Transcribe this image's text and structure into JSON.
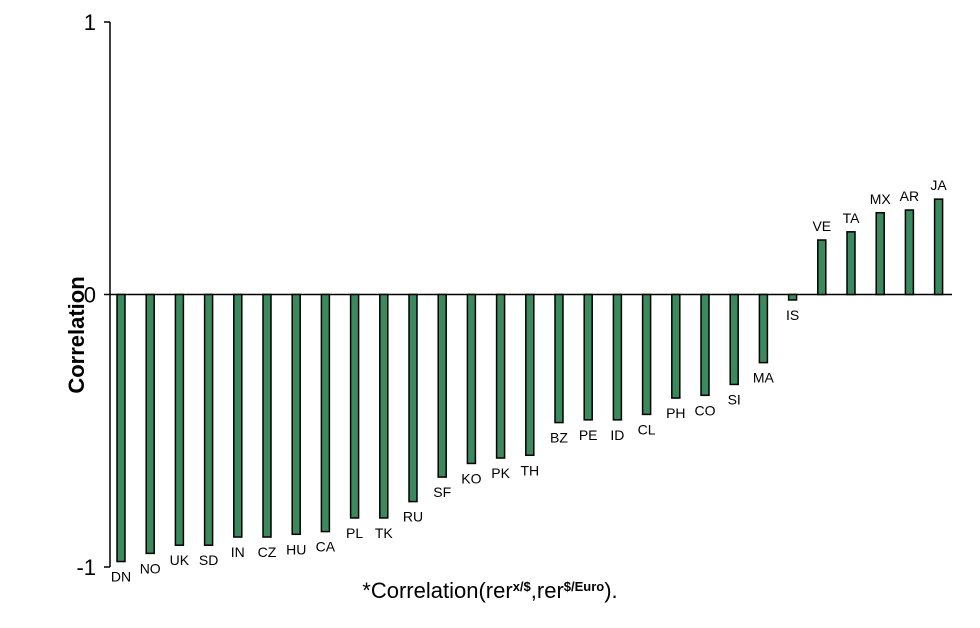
{
  "chart_data": {
    "type": "bar",
    "ylabel": "Correlation",
    "xlabel_parts": [
      "*Correlation(rer",
      "x/$",
      ",rer",
      "$/Euro",
      ")."
    ],
    "categories": [
      "DN",
      "NO",
      "UK",
      "SD",
      "IN",
      "CZ",
      "HU",
      "CA",
      "PL",
      "TK",
      "RU",
      "SF",
      "KO",
      "PK",
      "TH",
      "BZ",
      "PE",
      "ID",
      "CL",
      "PH",
      "CO",
      "SI",
      "MA",
      "IS",
      "VE",
      "TA",
      "MX",
      "AR",
      "JA"
    ],
    "values": [
      -0.98,
      -0.95,
      -0.92,
      -0.92,
      -0.89,
      -0.89,
      -0.88,
      -0.87,
      -0.82,
      -0.82,
      -0.76,
      -0.67,
      -0.62,
      -0.6,
      -0.59,
      -0.47,
      -0.46,
      -0.46,
      -0.44,
      -0.38,
      -0.37,
      -0.33,
      -0.25,
      -0.02,
      0.2,
      0.23,
      0.3,
      0.31,
      0.35
    ],
    "color": "#3a8a5e",
    "ylim": [
      -1,
      1
    ],
    "yticks": [
      -1,
      0,
      1
    ]
  }
}
